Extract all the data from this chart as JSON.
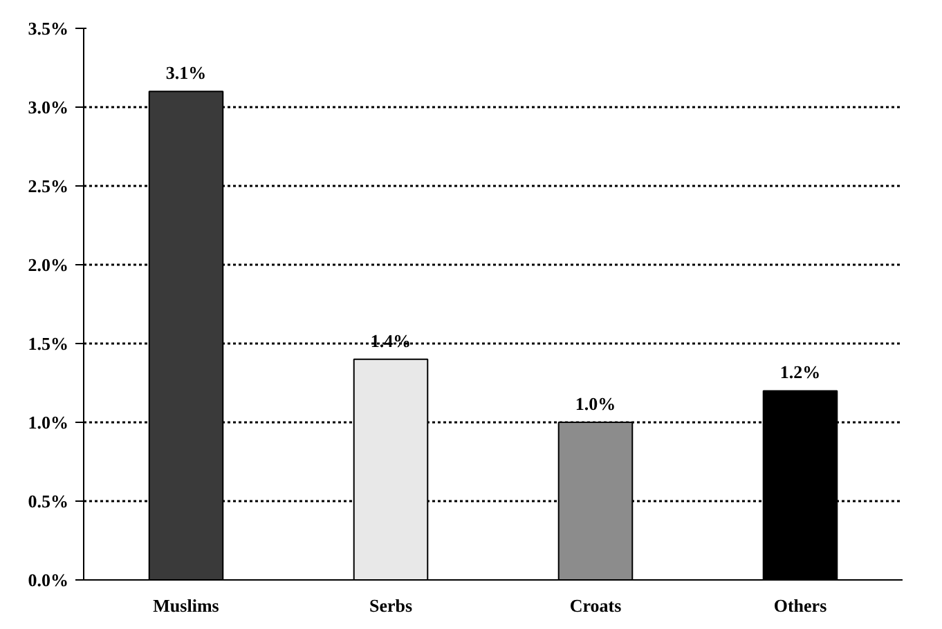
{
  "chart_data": {
    "type": "bar",
    "categories": [
      "Muslims",
      "Serbs",
      "Croats",
      "Others"
    ],
    "values": [
      3.1,
      1.4,
      1.0,
      1.2
    ],
    "colors": [
      "#3a3a3a",
      "#e8e8e8",
      "#8c8c8c",
      "#000000"
    ],
    "value_labels": [
      "3.1%",
      "1.4%",
      "1.0%",
      "1.2%"
    ],
    "ylim": [
      0,
      3.5
    ],
    "yticks": [
      {
        "value": 0,
        "label": "0.0%"
      },
      {
        "value": 0.5,
        "label": "0.5%"
      },
      {
        "value": 1.0,
        "label": "1.0%"
      },
      {
        "value": 1.5,
        "label": "1.5%"
      },
      {
        "value": 2.0,
        "label": "2.0%"
      },
      {
        "value": 2.5,
        "label": "2.5%"
      },
      {
        "value": 3.0,
        "label": "3.0%"
      },
      {
        "value": 3.5,
        "label": "3.5%"
      }
    ],
    "grid": "y"
  }
}
